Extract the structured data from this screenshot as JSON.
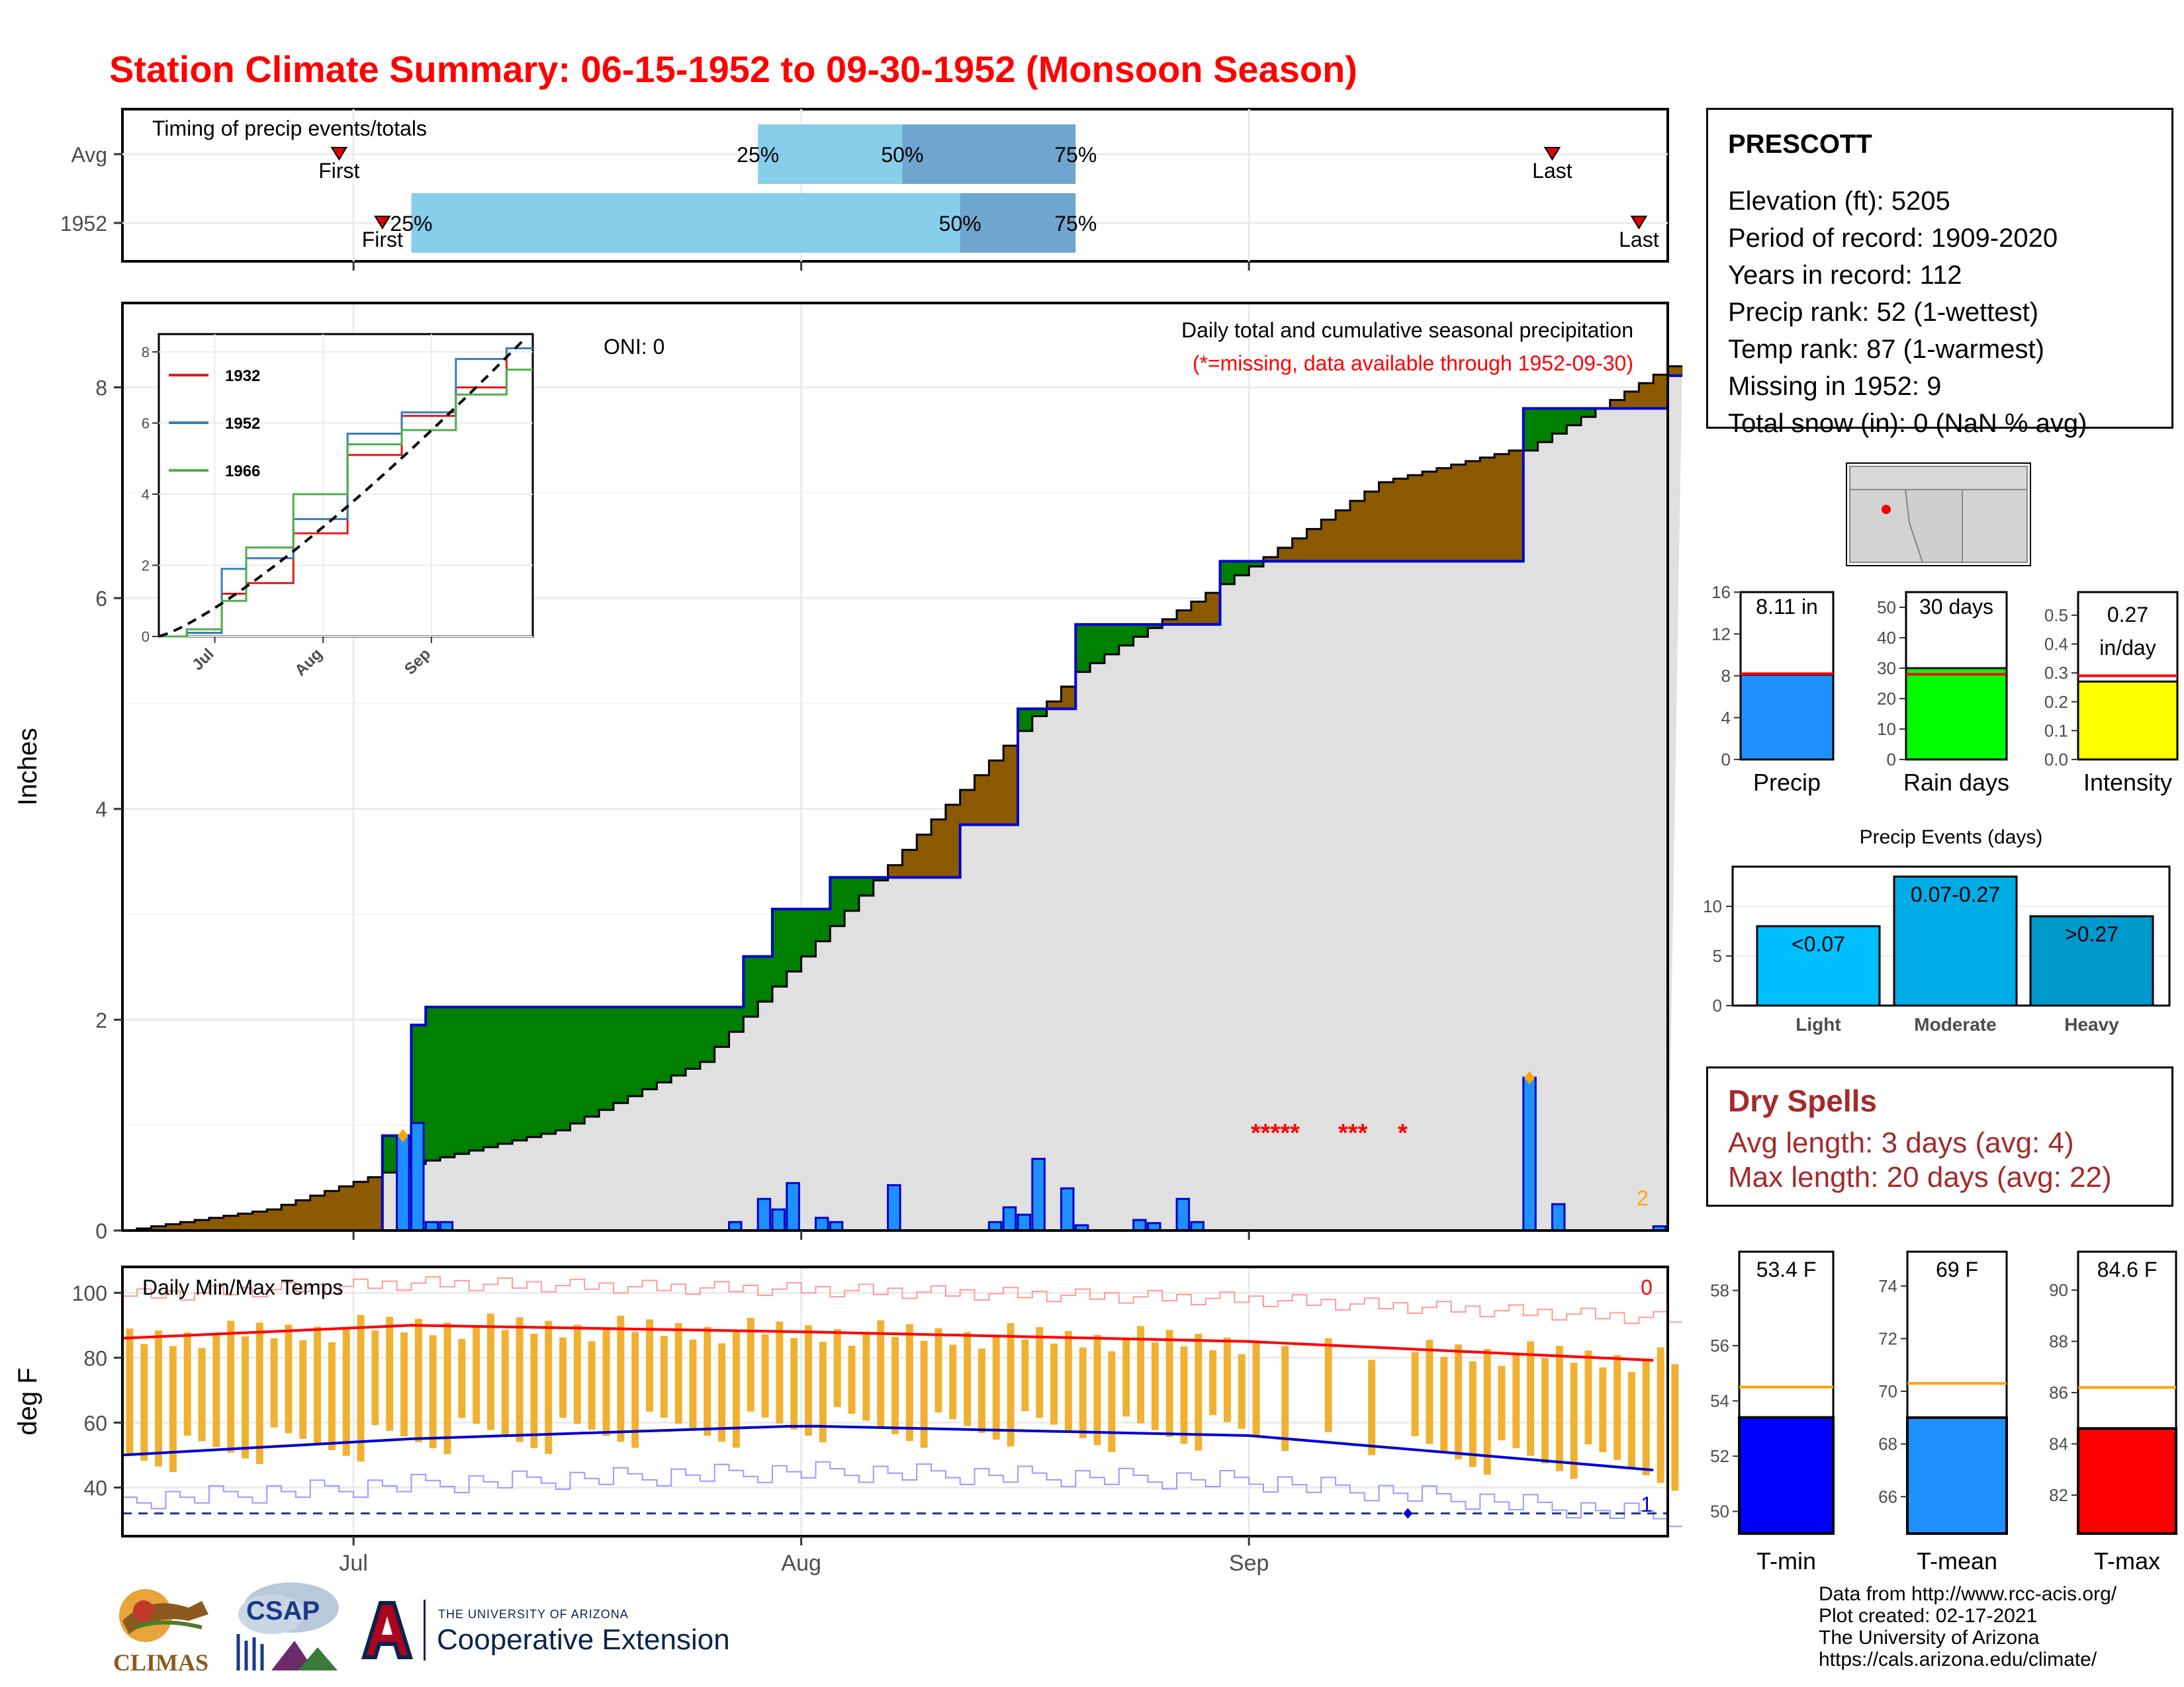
{
  "title": "Station Climate Summary: 06-15-1952 to 09-30-1952 (Monsoon Season)",
  "timing_panel": {
    "label": "Timing of precip events/totals",
    "row_labels": [
      "Avg",
      "1952"
    ],
    "pct_labels": [
      "25%",
      "50%",
      "75%"
    ],
    "first_label": "First",
    "last_label": "Last",
    "avg": {
      "first": "06-30",
      "p25": "07-29",
      "p50": "08-08",
      "p75": "08-20",
      "last": "09-22"
    },
    "y1952": {
      "first": "07-03",
      "p25": "07-05",
      "p50": "08-12",
      "p75": "08-20",
      "last": "09-28"
    }
  },
  "main_panel": {
    "ylabel": "Inches",
    "oni": "ONI: 0",
    "note1": "Daily total and cumulative seasonal precipitation",
    "note2": "(*=missing, data available through 1952-09-30)",
    "count_label": "2",
    "yticks": [
      "0",
      "2",
      "4",
      "6",
      "8"
    ],
    "missing_marks": [
      "*****",
      "***",
      "*"
    ]
  },
  "inset": {
    "yticks": [
      "0",
      "2",
      "4",
      "6",
      "8"
    ],
    "xticks": [
      "Jul",
      "Aug",
      "Sep"
    ],
    "legend": [
      {
        "name": "1932",
        "color": "#e41a1c"
      },
      {
        "name": "1952",
        "color": "#377eb8"
      },
      {
        "name": "1966",
        "color": "#4daf4a"
      }
    ]
  },
  "temp_panel": {
    "title": "Daily Min/Max Temps",
    "ylabel": "deg F",
    "yticks": [
      "40",
      "60",
      "80",
      "100"
    ],
    "xticks": [
      "Jul",
      "Aug",
      "Sep"
    ],
    "count_top": "0",
    "count_bottom": "1"
  },
  "station": {
    "name": "PRESCOTT",
    "lines": [
      "Elevation (ft): 5205",
      "Period of record: 1909-2020",
      "Years in record: 112",
      "Precip rank: 52 (1-wettest)",
      "Temp rank: 87 (1-warmest)",
      "Missing in 1952: 9",
      "Total snow (in): 0 (NaN % avg)"
    ]
  },
  "summary_bars": [
    {
      "label": "Precip",
      "value_label": "8.11 in",
      "value": 8.11,
      "avg": 8.2,
      "max": 16,
      "ticks": [
        "0",
        "4",
        "8",
        "12",
        "16"
      ],
      "color": "#1e90ff"
    },
    {
      "label": "Rain days",
      "value_label": "30 days",
      "value": 30,
      "avg": 28,
      "max": 55,
      "ticks": [
        "0",
        "10",
        "20",
        "30",
        "40",
        "50"
      ],
      "color": "#00ff00"
    },
    {
      "label": "Intensity",
      "value_label_1": "0.27",
      "value_label_2": "in/day",
      "value": 0.27,
      "avg": 0.29,
      "max": 0.58,
      "ticks": [
        "0.0",
        "0.1",
        "0.2",
        "0.3",
        "0.4",
        "0.5"
      ],
      "color": "#ffff00"
    }
  ],
  "events": {
    "title": "Precip Events (days)",
    "ticks": [
      "0",
      "5",
      "10"
    ],
    "bars": [
      {
        "label": "Light",
        "range": "<0.07",
        "value": 8,
        "color": "#00bfff"
      },
      {
        "label": "Moderate",
        "range": "0.07-0.27",
        "value": 13,
        "color": "#00ace6"
      },
      {
        "label": "Heavy",
        "range": ">0.27",
        "value": 9,
        "color": "#0099cc"
      }
    ]
  },
  "dry_spells": {
    "title": "Dry Spells",
    "avg_line": "Avg length: 3 days (avg: 4)",
    "max_line": "Max length: 20 days (avg: 22)"
  },
  "temp_bars": [
    {
      "label": "T-min",
      "value_label": "53.4 F",
      "value": 53.4,
      "avg": 54.5,
      "min": 49.2,
      "max": 59.4,
      "ticks": [
        "50",
        "52",
        "54",
        "56",
        "58"
      ],
      "color": "#0000ff"
    },
    {
      "label": "T-mean",
      "value_label": "69 F",
      "value": 69.0,
      "avg": 70.3,
      "min": 64.6,
      "max": 75.3,
      "ticks": [
        "66",
        "68",
        "70",
        "72",
        "74"
      ],
      "color": "#1e90ff"
    },
    {
      "label": "T-max",
      "value_label": "84.6 F",
      "value": 84.6,
      "avg": 86.2,
      "min": 80.5,
      "max": 91.5,
      "ticks": [
        "82",
        "84",
        "86",
        "88",
        "90"
      ],
      "color": "#ff0000"
    }
  ],
  "footer": {
    "lines": [
      "Data from http://www.rcc-acis.org/",
      "Plot created: 02-17-2021",
      "The University of Arizona",
      "https://cals.arizona.edu/climate/"
    ]
  },
  "logos": {
    "climas": "CLIMAS",
    "csap": "CSAP",
    "ua_small": "THE UNIVERSITY OF ARIZONA",
    "coop": "Cooperative Extension"
  },
  "chart_data": [
    {
      "type": "area",
      "title": "Daily total and cumulative seasonal precipitation",
      "ylabel": "Inches",
      "x_range": [
        "06-15",
        "09-30"
      ],
      "ylim": [
        0,
        8.8
      ],
      "series": [
        {
          "name": "1952",
          "x": [
            "06-15",
            "07-03",
            "07-05",
            "07-06",
            "07-12",
            "07-28",
            "07-30",
            "08-03",
            "08-08",
            "08-12",
            "08-16",
            "08-20",
            "08-30",
            "09-02",
            "09-19",
            "09-20",
            "09-30"
          ],
          "values": [
            0,
            0.9,
            1.95,
            2.12,
            2.12,
            2.6,
            3.05,
            3.35,
            3.35,
            3.85,
            4.95,
            5.75,
            6.35,
            6.35,
            6.35,
            7.8,
            8.11
          ]
        },
        {
          "x": [
            "06-15",
            "06-25",
            "07-03",
            "07-04",
            "07-15",
            "07-25",
            "08-01",
            "08-10",
            "08-20",
            "09-01",
            "09-10",
            "09-19",
            "09-20",
            "09-30"
          ],
          "values": [
            0,
            0.2,
            0.55,
            0.6,
            0.95,
            1.6,
            2.6,
            3.9,
            5.3,
            6.3,
            7.1,
            7.4,
            7.4,
            8.2
          ]
        }
      ]
    },
    {
      "type": "bar",
      "values_by_date": [
        {
          "x": "07-04",
          "y": 0.9
        },
        {
          "x": "07-05",
          "y": 1.02
        },
        {
          "x": "07-06",
          "y": 0.08
        },
        {
          "x": "07-07",
          "y": 0.08
        },
        {
          "x": "07-27",
          "y": 0.08
        },
        {
          "x": "07-29",
          "y": 0.3
        },
        {
          "x": "07-30",
          "y": 0.2
        },
        {
          "x": "07-31",
          "y": 0.45
        },
        {
          "x": "08-02",
          "y": 0.12
        },
        {
          "x": "08-03",
          "y": 0.08
        },
        {
          "x": "08-07",
          "y": 0.43
        },
        {
          "x": "08-14",
          "y": 0.08
        },
        {
          "x": "08-15",
          "y": 0.22
        },
        {
          "x": "08-16",
          "y": 0.15
        },
        {
          "x": "08-17",
          "y": 0.68
        },
        {
          "x": "08-19",
          "y": 0.4
        },
        {
          "x": "08-20",
          "y": 0.05
        },
        {
          "x": "08-24",
          "y": 0.1
        },
        {
          "x": "08-25",
          "y": 0.07
        },
        {
          "x": "08-27",
          "y": 0.3
        },
        {
          "x": "08-28",
          "y": 0.08
        },
        {
          "x": "09-20",
          "y": 1.45
        },
        {
          "x": "09-22",
          "y": 0.25
        },
        {
          "x": "09-29",
          "y": 0.04
        }
      ]
    },
    {
      "type": "line",
      "title": "",
      "xticks": [
        "Jul",
        "Aug",
        "Sep"
      ],
      "ylim": [
        0,
        8.5
      ],
      "series": [
        {
          "name": "1932",
          "x": [
            "06-15",
            "07-01",
            "07-05",
            "07-15",
            "08-01",
            "08-15",
            "09-01",
            "09-15",
            "09-30"
          ],
          "values": [
            0,
            0.1,
            1.2,
            1.5,
            2.9,
            5.1,
            6.2,
            7.0,
            8.1
          ]
        },
        {
          "name": "1952",
          "x": [
            "06-15",
            "07-01",
            "07-05",
            "07-15",
            "08-01",
            "08-15",
            "09-01",
            "09-15",
            "09-30"
          ],
          "values": [
            0,
            0.1,
            1.9,
            2.2,
            3.3,
            5.7,
            6.3,
            7.8,
            8.1
          ]
        },
        {
          "name": "1966",
          "x": [
            "06-15",
            "07-01",
            "07-05",
            "07-15",
            "08-01",
            "08-15",
            "09-01",
            "09-15",
            "09-30"
          ],
          "values": [
            0,
            0.2,
            1.0,
            2.5,
            4.0,
            5.4,
            5.8,
            6.8,
            7.5
          ]
        }
      ]
    },
    {
      "type": "line",
      "title": "Daily Min/Max Temps",
      "ylabel": "deg F",
      "ylim": [
        25,
        108
      ],
      "series": [
        {
          "name": "avg max",
          "x": [
            "06-15",
            "07-05",
            "08-01",
            "09-01",
            "09-30"
          ],
          "values": [
            86,
            90,
            88,
            85,
            79
          ]
        },
        {
          "name": "avg min",
          "x": [
            "06-15",
            "07-05",
            "08-01",
            "09-01",
            "09-30"
          ],
          "values": [
            50,
            55,
            59,
            56,
            45
          ]
        }
      ]
    }
  ]
}
